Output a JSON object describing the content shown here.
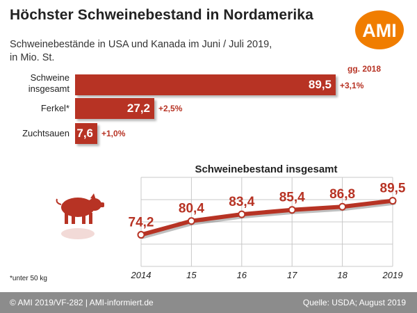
{
  "header": {
    "title": "Höchster Schweinebestand in Nordamerika",
    "subtitle_line1": "Schweinebestände in USA und Kanada im Juni / Juli 2019,",
    "subtitle_line2": "in Mio. St.",
    "logo_text": "AMI"
  },
  "bar_chart": {
    "comparison_label": "gg. 2018",
    "bars": [
      {
        "label_line1": "Schweine",
        "label_line2": "insgesamt",
        "value_text": "89,5",
        "change": "+3,1%"
      },
      {
        "label_line1": "Ferkel*",
        "label_line2": "",
        "value_text": "27,2",
        "change": "+2,5%"
      },
      {
        "label_line1": "Zuchtsauen",
        "label_line2": "",
        "value_text": "7,6",
        "change": "+1,0%"
      }
    ]
  },
  "line_chart": {
    "title": "Schweinebestand insgesamt",
    "x_tick_labels": [
      "2014",
      "15",
      "16",
      "17",
      "18",
      "2019"
    ],
    "value_labels": [
      "74,2",
      "80,4",
      "83,4",
      "85,4",
      "86,8",
      "89,5"
    ]
  },
  "footnote": "*unter 50 kg",
  "footer": {
    "left": "© AMI 2019/VF-282 | AMI-informiert.de",
    "right": "Quelle: USDA; August 2019"
  },
  "colors": {
    "accent": "#b73324",
    "logo": "#f07d00",
    "footer": "#8c8c8c"
  },
  "chart_data": [
    {
      "type": "bar",
      "orientation": "horizontal",
      "categories": [
        "Schweine insgesamt",
        "Ferkel*",
        "Zuchtsauen"
      ],
      "values": [
        89.5,
        27.2,
        7.6
      ],
      "changes_vs_2018": [
        "+3,1%",
        "+2,5%",
        "+1,0%"
      ]
    },
    {
      "type": "line",
      "title": "Schweinebestand insgesamt",
      "x": [
        2014,
        2015,
        2016,
        2017,
        2018,
        2019
      ],
      "y": [
        74.2,
        80.4,
        83.4,
        85.4,
        86.8,
        89.5
      ],
      "grid": true
    }
  ]
}
